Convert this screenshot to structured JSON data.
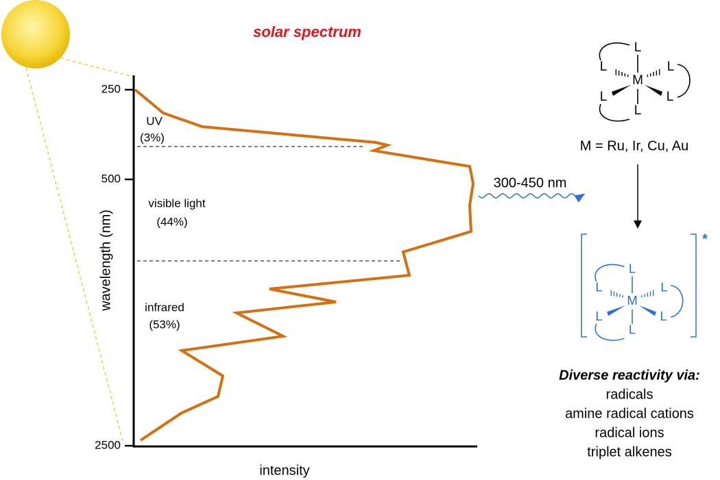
{
  "title": "solar spectrum",
  "axis": {
    "y_label": "wavelength (nm)",
    "x_label": "intensity",
    "ticks": [
      250,
      500,
      2500
    ]
  },
  "regions": [
    {
      "name": "UV",
      "share": "(3%)"
    },
    {
      "name": "visible light",
      "share": "(44%)"
    },
    {
      "name": "infrared",
      "share": "(53%)"
    }
  ],
  "arrow_label": "300-450 nm",
  "complex": {
    "metal": "M",
    "ligand": "L",
    "definition": "M = Ru, Ir, Cu, Au",
    "excited_mark": "*"
  },
  "reactivity": {
    "heading": "Diverse reactivity via:",
    "items": [
      "radicals",
      "amine radical cations",
      "radical ions",
      "triplet alkenes"
    ]
  }
}
